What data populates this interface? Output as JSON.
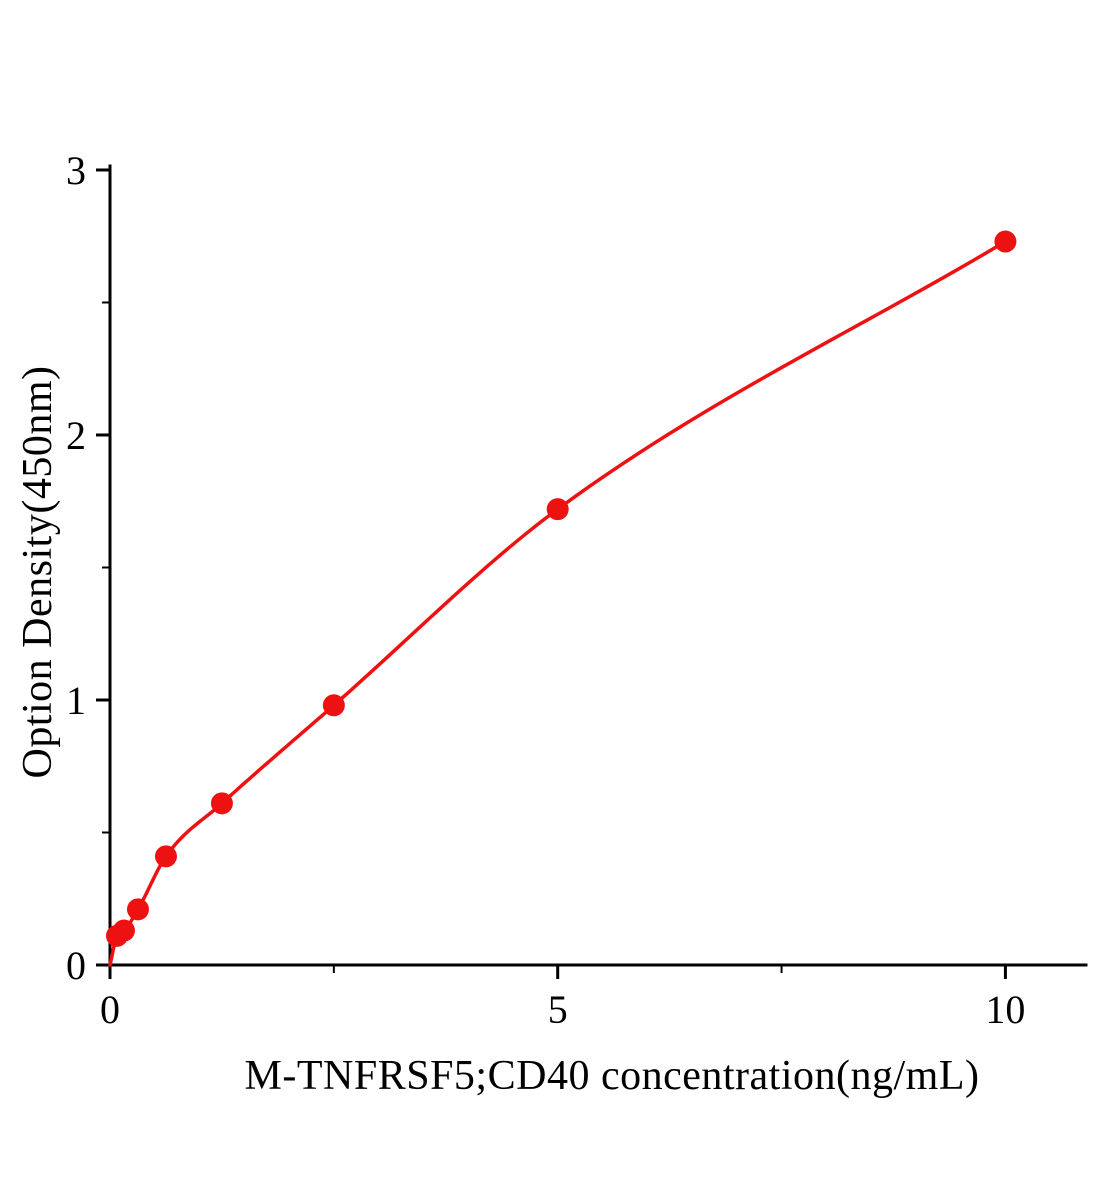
{
  "chart_data": {
    "type": "scatter",
    "title": "",
    "xlabel": "M-TNFRSF5;CD40 concentration(ng/mL)",
    "ylabel": "Option Density(450nm)",
    "xlim": [
      0,
      10.9
    ],
    "ylim": [
      0,
      3.015
    ],
    "x_major_ticks": [
      0,
      5,
      10
    ],
    "x_minor_ticks": [
      2.5,
      7.5
    ],
    "y_major_ticks": [
      0,
      1,
      2,
      3
    ],
    "y_minor_ticks": [
      0.5,
      1.5,
      2.5
    ],
    "grid": false,
    "legend_position": "none",
    "line_color": "#ee1111",
    "point_color": "#ee1111",
    "axis_color": "#000000",
    "curve_start": {
      "x": 0,
      "y": 0
    },
    "points": [
      {
        "x": 0.078,
        "y": 0.11
      },
      {
        "x": 0.156,
        "y": 0.13
      },
      {
        "x": 0.3125,
        "y": 0.21
      },
      {
        "x": 0.625,
        "y": 0.41
      },
      {
        "x": 1.25,
        "y": 0.61
      },
      {
        "x": 2.5,
        "y": 0.98
      },
      {
        "x": 5,
        "y": 1.72
      },
      {
        "x": 10,
        "y": 2.73
      }
    ]
  }
}
